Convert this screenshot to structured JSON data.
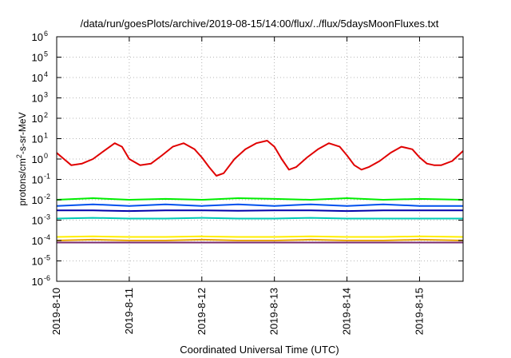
{
  "chart_data": {
    "type": "line",
    "title": "/data/run/goesPlots/archive/2019-08-15/14:00/flux/../flux/5daysMoonFluxes.txt",
    "xlabel": "Coordinated Universal Time (UTC)",
    "ylabel": "protons/cm²-s-sr-MeV",
    "yscale": "log",
    "ylim": [
      1e-06,
      1000000.0
    ],
    "y_ticks": [
      {
        "value": 1e-06,
        "base": "10",
        "exp": "-6"
      },
      {
        "value": 1e-05,
        "base": "10",
        "exp": "-5"
      },
      {
        "value": 0.0001,
        "base": "10",
        "exp": "-4"
      },
      {
        "value": 0.001,
        "base": "10",
        "exp": "-3"
      },
      {
        "value": 0.01,
        "base": "10",
        "exp": "-2"
      },
      {
        "value": 0.1,
        "base": "10",
        "exp": "-1"
      },
      {
        "value": 1,
        "base": "10",
        "exp": "0"
      },
      {
        "value": 10,
        "base": "10",
        "exp": "1"
      },
      {
        "value": 100,
        "base": "10",
        "exp": "2"
      },
      {
        "value": 1000,
        "base": "10",
        "exp": "3"
      },
      {
        "value": 10000,
        "base": "10",
        "exp": "4"
      },
      {
        "value": 100000,
        "base": "10",
        "exp": "5"
      },
      {
        "value": 1000000,
        "base": "10",
        "exp": "6"
      }
    ],
    "x_ticks": [
      {
        "label": "2019-8-10",
        "day": 10
      },
      {
        "label": "2019-8-11",
        "day": 11
      },
      {
        "label": "2019-8-12",
        "day": 12
      },
      {
        "label": "2019-8-13",
        "day": 13
      },
      {
        "label": "2019-8-14",
        "day": 14
      },
      {
        "label": "2019-8-15",
        "day": 15
      }
    ],
    "xlim_days": [
      10,
      15.6
    ],
    "grid": true,
    "series": [
      {
        "color": "#e00000",
        "x": [
          10.0,
          10.1,
          10.2,
          10.35,
          10.5,
          10.65,
          10.8,
          10.9,
          11.0,
          11.15,
          11.3,
          11.45,
          11.6,
          11.75,
          11.9,
          12.0,
          12.1,
          12.2,
          12.3,
          12.45,
          12.6,
          12.75,
          12.9,
          13.0,
          13.1,
          13.2,
          13.3,
          13.45,
          13.6,
          13.75,
          13.9,
          14.0,
          14.1,
          14.2,
          14.3,
          14.45,
          14.6,
          14.75,
          14.9,
          15.0,
          15.1,
          15.2,
          15.3,
          15.45,
          15.6
        ],
        "values": [
          2,
          1,
          0.5,
          0.6,
          1,
          2.5,
          6,
          4,
          1,
          0.5,
          0.6,
          1.5,
          4,
          6,
          3,
          1.2,
          0.4,
          0.15,
          0.2,
          1,
          3,
          6,
          8,
          4,
          1,
          0.3,
          0.4,
          1.2,
          3,
          6,
          4,
          1.5,
          0.5,
          0.3,
          0.4,
          0.8,
          2,
          4,
          3,
          1.2,
          0.6,
          0.5,
          0.5,
          0.8,
          2.5
        ]
      },
      {
        "color": "#00ee00",
        "x": [
          10.0,
          10.5,
          11.0,
          11.5,
          12.0,
          12.5,
          13.0,
          13.5,
          14.0,
          14.5,
          15.0,
          15.6
        ],
        "values": [
          0.01,
          0.012,
          0.01,
          0.011,
          0.01,
          0.012,
          0.011,
          0.01,
          0.012,
          0.01,
          0.011,
          0.01
        ]
      },
      {
        "color": "#0050ee",
        "x": [
          10.0,
          10.5,
          11.0,
          11.5,
          12.0,
          12.5,
          13.0,
          13.5,
          14.0,
          14.5,
          15.0,
          15.6
        ],
        "values": [
          0.005,
          0.006,
          0.005,
          0.006,
          0.005,
          0.006,
          0.005,
          0.006,
          0.005,
          0.006,
          0.005,
          0.005
        ]
      },
      {
        "color": "#0000aa",
        "x": [
          10.0,
          10.5,
          11.0,
          11.5,
          12.0,
          12.5,
          13.0,
          13.5,
          14.0,
          14.5,
          15.0,
          15.6
        ],
        "values": [
          0.003,
          0.003,
          0.0028,
          0.003,
          0.003,
          0.0029,
          0.003,
          0.003,
          0.0028,
          0.003,
          0.003,
          0.003
        ]
      },
      {
        "color": "#00c8b4",
        "x": [
          10.0,
          10.5,
          11.0,
          11.5,
          12.0,
          12.5,
          13.0,
          13.5,
          14.0,
          14.5,
          15.0,
          15.6
        ],
        "values": [
          0.0012,
          0.0013,
          0.0012,
          0.0012,
          0.0013,
          0.0012,
          0.0012,
          0.0013,
          0.0012,
          0.0012,
          0.0012,
          0.0012
        ]
      },
      {
        "color": "#ffee00",
        "x": [
          10.0,
          10.5,
          11.0,
          11.5,
          12.0,
          12.5,
          13.0,
          13.5,
          14.0,
          14.5,
          15.0,
          15.6
        ],
        "values": [
          0.00015,
          0.00016,
          0.00015,
          0.00015,
          0.00016,
          0.00015,
          0.00015,
          0.00016,
          0.00015,
          0.00015,
          0.00016,
          0.00015
        ]
      },
      {
        "color": "#e6a000",
        "x": [
          10.0,
          10.5,
          11.0,
          11.5,
          12.0,
          12.5,
          13.0,
          13.5,
          14.0,
          14.5,
          15.0,
          15.6
        ],
        "values": [
          0.0001,
          0.00011,
          0.0001,
          0.0001,
          0.00011,
          0.0001,
          0.0001,
          0.00011,
          0.0001,
          0.0001,
          0.00011,
          0.0001
        ]
      },
      {
        "color": "#7a2a6e",
        "x": [
          10.0,
          10.5,
          11.0,
          11.5,
          12.0,
          12.5,
          13.0,
          13.5,
          14.0,
          14.5,
          15.0,
          15.6
        ],
        "values": [
          8e-05,
          8e-05,
          8e-05,
          8e-05,
          8e-05,
          8e-05,
          8e-05,
          8e-05,
          8e-05,
          8e-05,
          8e-05,
          8e-05
        ]
      }
    ]
  }
}
